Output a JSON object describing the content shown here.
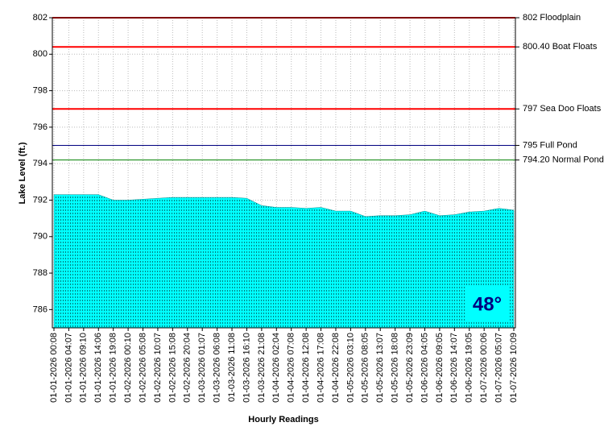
{
  "chart_data": {
    "type": "area",
    "y_label": "Lake Level (ft.)",
    "x_label": "Hourly Readings",
    "badge": "48°",
    "categories": [
      "01-01-2026 00:08",
      "01-01-2026 04:07",
      "01-01-2026 09:10",
      "01-01-2026 14:06",
      "01-01-2026 19:08",
      "01-02-2026 00:10",
      "01-02-2026 05:08",
      "01-02-2026 10:07",
      "01-02-2026 15:08",
      "01-02-2026 20:04",
      "01-03-2026 01:07",
      "01-03-2026 06:08",
      "01-03-2026 11:08",
      "01-03-2026 16:10",
      "01-03-2026 21:08",
      "01-04-2026 02:04",
      "01-04-2026 07:08",
      "01-04-2026 12:08",
      "01-04-2026 17:08",
      "01-04-2026 22:08",
      "01-05-2026 03:10",
      "01-05-2026 08:05",
      "01-05-2026 13:07",
      "01-05-2026 18:08",
      "01-05-2026 23:09",
      "01-06-2026 04:05",
      "01-06-2026 09:05",
      "01-06-2026 14:07",
      "01-06-2026 19:05",
      "01-07-2026 00:06",
      "01-07-2026 05:07",
      "01-07-2026 10:09"
    ],
    "series": [
      {
        "color": "#00ffff",
        "values": [
          792.3,
          792.3,
          792.3,
          792.3,
          792.0,
          792.0,
          792.05,
          792.1,
          792.15,
          792.15,
          792.15,
          792.15,
          792.15,
          792.1,
          791.7,
          791.6,
          791.6,
          791.55,
          791.6,
          791.4,
          791.4,
          791.1,
          791.15,
          791.15,
          791.2,
          791.4,
          791.15,
          791.2,
          791.35,
          791.4,
          791.55,
          791.45
        ]
      }
    ],
    "ylim": [
      785,
      802
    ],
    "yticks": [
      786,
      788,
      790,
      792,
      794,
      796,
      798,
      800,
      802
    ],
    "grid": true,
    "reference_lines": [
      {
        "value": 802,
        "label": "802 Floodplain",
        "color": "#ff0000"
      },
      {
        "value": 800.4,
        "label": "800.40 Boat Floats",
        "color": "#ff0000"
      },
      {
        "value": 797,
        "label": "797 Sea Doo Floats",
        "color": "#ff0000"
      },
      {
        "value": 795,
        "label": "795 Full Pond",
        "color": "#000080"
      },
      {
        "value": 794.2,
        "label": "794.20 Normal Pond",
        "color": "#008000"
      }
    ]
  }
}
